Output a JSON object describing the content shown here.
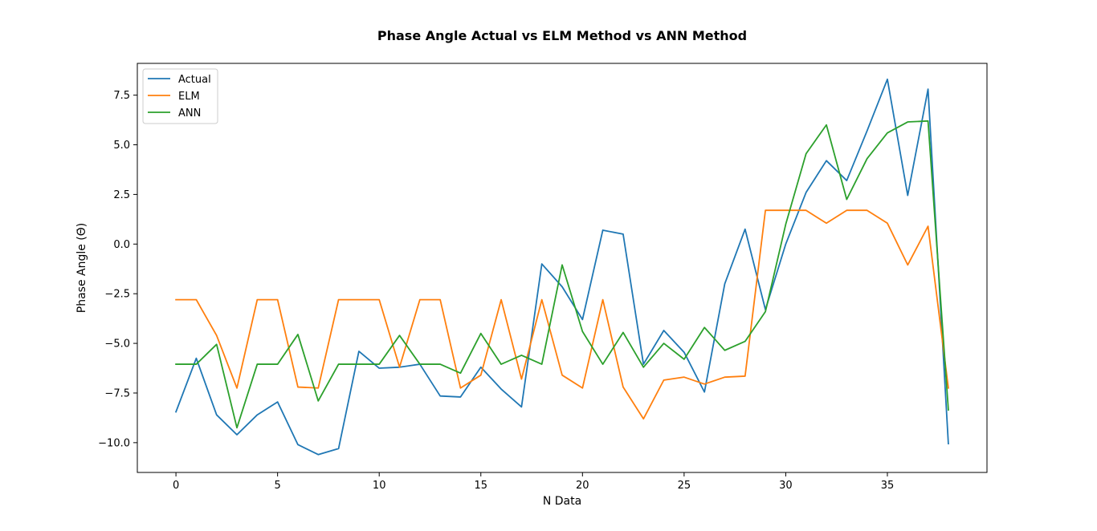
{
  "chart_data": {
    "type": "line",
    "title": "Phase Angle Actual vs ELM Method vs ANN Method",
    "xlabel": "N Data",
    "ylabel": "Phase Angle (Θ̇)",
    "xlim": [
      -1.9,
      39.9
    ],
    "ylim": [
      -11.5,
      9.1
    ],
    "x_ticks": [
      0,
      5,
      10,
      15,
      20,
      25,
      30,
      35
    ],
    "y_ticks": [
      -10.0,
      -7.5,
      -5.0,
      -2.5,
      0.0,
      2.5,
      5.0,
      7.5
    ],
    "x_tick_labels": [
      "0",
      "5",
      "10",
      "15",
      "20",
      "25",
      "30",
      "35"
    ],
    "y_tick_labels": [
      "−10.0",
      "−7.5",
      "−5.0",
      "−2.5",
      "0.0",
      "2.5",
      "5.0",
      "7.5"
    ],
    "grid": false,
    "legend_position": "top-left",
    "x": [
      0,
      1,
      2,
      3,
      4,
      5,
      6,
      7,
      8,
      9,
      10,
      11,
      12,
      13,
      14,
      15,
      16,
      17,
      18,
      19,
      20,
      21,
      22,
      23,
      24,
      25,
      26,
      27,
      28,
      29,
      30,
      31,
      32,
      33,
      34,
      35,
      36,
      37,
      38
    ],
    "series": [
      {
        "name": "Actual",
        "color": "#1f77b4",
        "values": [
          -8.45,
          -5.75,
          -8.6,
          -9.6,
          -8.6,
          -7.95,
          -10.1,
          -10.6,
          -10.3,
          -5.4,
          -6.25,
          -6.2,
          -6.05,
          -7.65,
          -7.7,
          -6.2,
          -7.3,
          -8.2,
          -1.0,
          -2.15,
          -3.8,
          0.7,
          0.5,
          -6.05,
          -4.35,
          -5.45,
          -7.45,
          -2.0,
          0.75,
          -3.3,
          0.0,
          2.6,
          4.2,
          3.2,
          5.7,
          8.3,
          2.45,
          7.8,
          -10.05
        ]
      },
      {
        "name": "ELM",
        "color": "#ff7f0e",
        "values": [
          -2.8,
          -2.8,
          -4.6,
          -7.25,
          -2.8,
          -2.8,
          -7.2,
          -7.25,
          -2.8,
          -2.8,
          -2.8,
          -6.2,
          -2.8,
          -2.8,
          -7.25,
          -6.6,
          -2.8,
          -6.8,
          -2.8,
          -6.6,
          -7.25,
          -2.8,
          -7.2,
          -8.8,
          -6.85,
          -6.7,
          -7.05,
          -6.7,
          -6.65,
          1.7,
          1.7,
          1.7,
          1.05,
          1.7,
          1.7,
          1.05,
          -1.05,
          0.9,
          -7.25
        ]
      },
      {
        "name": "ANN",
        "color": "#2ca02c",
        "values": [
          -6.05,
          -6.05,
          -5.05,
          -9.25,
          -6.05,
          -6.05,
          -4.55,
          -7.9,
          -6.05,
          -6.05,
          -6.05,
          -4.6,
          -6.05,
          -6.05,
          -6.5,
          -4.5,
          -6.05,
          -5.6,
          -6.05,
          -1.05,
          -4.4,
          -6.05,
          -4.45,
          -6.2,
          -5.0,
          -5.8,
          -4.2,
          -5.35,
          -4.9,
          -3.4,
          1.0,
          4.55,
          6.0,
          2.25,
          4.3,
          5.6,
          6.15,
          6.2,
          -8.35
        ]
      }
    ]
  }
}
